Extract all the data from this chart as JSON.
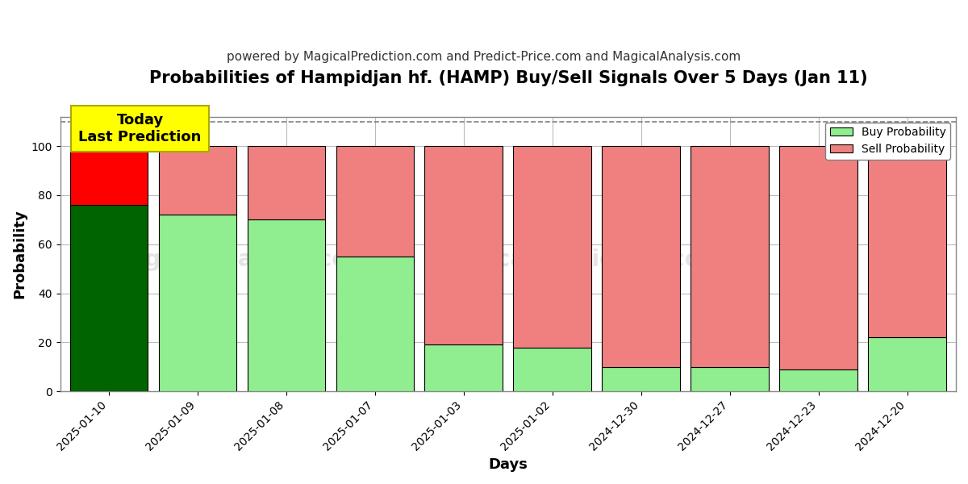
{
  "title": "Probabilities of Hampidjan hf. (HAMP) Buy/Sell Signals Over 5 Days (Jan 11)",
  "subtitle": "powered by MagicalPrediction.com and Predict-Price.com and MagicalAnalysis.com",
  "xlabel": "Days",
  "ylabel": "Probability",
  "categories": [
    "2025-01-10",
    "2025-01-09",
    "2025-01-08",
    "2025-01-07",
    "2025-01-03",
    "2025-01-02",
    "2024-12-30",
    "2024-12-27",
    "2024-12-23",
    "2024-12-20"
  ],
  "buy_values": [
    76,
    72,
    70,
    55,
    19,
    18,
    10,
    10,
    9,
    22
  ],
  "sell_values": [
    24,
    28,
    30,
    45,
    81,
    82,
    90,
    90,
    91,
    78
  ],
  "today_buy_color": "#006400",
  "today_sell_color": "#ff0000",
  "buy_color": "#90ee90",
  "sell_color": "#f08080",
  "today_annotation_bg": "#ffff00",
  "today_annotation_text": "Today\nLast Prediction",
  "bar_edge_color": "#000000",
  "ylim": [
    0,
    112
  ],
  "yticks": [
    0,
    20,
    40,
    60,
    80,
    100
  ],
  "dashed_line_y": 110,
  "legend_buy_label": "Buy Probability",
  "legend_sell_label": "Sell Probability",
  "title_fontsize": 15,
  "subtitle_fontsize": 11,
  "axis_label_fontsize": 13,
  "tick_fontsize": 10,
  "legend_fontsize": 10,
  "bg_color": "#ffffff",
  "grid_color": "#bbbbbb",
  "bar_width": 0.88
}
